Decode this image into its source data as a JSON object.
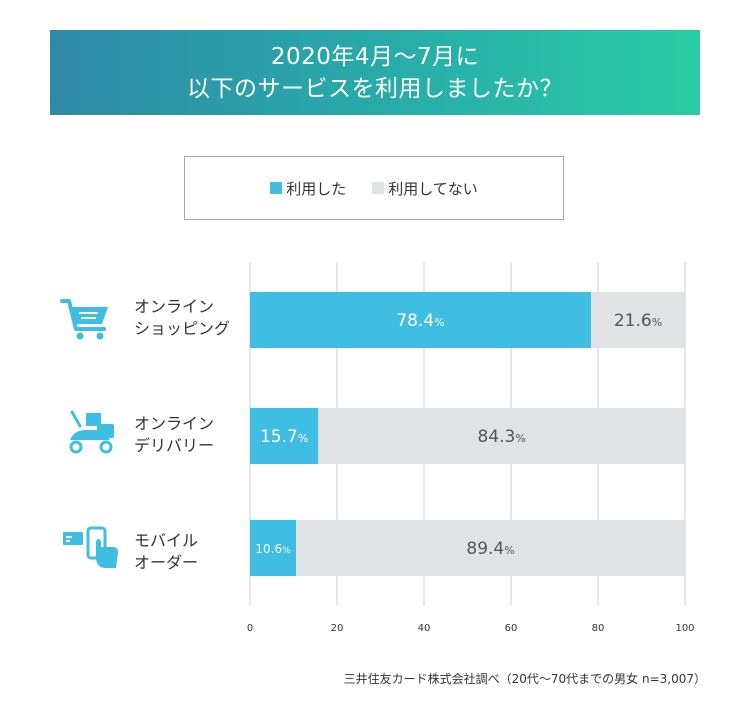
{
  "title": {
    "line1": "2020年4月〜7月に",
    "line2": "以下のサービスを利用しましたか？"
  },
  "legend": [
    {
      "label": "利用した",
      "color": "#3fbde3"
    },
    {
      "label": "利用してない",
      "color": "#e1e2e5"
    }
  ],
  "categories": [
    {
      "line1": "オンライン",
      "line2": "ショッピング",
      "icon": "shopping-cart-icon"
    },
    {
      "line1": "オンライン",
      "line2": "デリバリー",
      "icon": "delivery-scooter-icon"
    },
    {
      "line1": "モバイル",
      "line2": "オーダー",
      "icon": "mobile-order-icon"
    }
  ],
  "footnote": "三井住友カード株式会社調べ（20代〜70代までの男女 n=3,007）",
  "chart_data": {
    "type": "bar",
    "orientation": "horizontal",
    "stacked": true,
    "categories": [
      "オンラインショッピング",
      "オンラインデリバリー",
      "モバイルオーダー"
    ],
    "series": [
      {
        "name": "利用した",
        "values": [
          78.4,
          15.7,
          10.6
        ],
        "labels": [
          "78.4",
          "15.7",
          "10.6"
        ],
        "color": "#3fbde3"
      },
      {
        "name": "利用してない",
        "values": [
          21.6,
          84.3,
          89.4
        ],
        "labels": [
          "21.6",
          "84.3",
          "89.4"
        ],
        "color": "#e1e2e5"
      }
    ],
    "unit": "%",
    "xlim": [
      0,
      100
    ],
    "xticks": [
      "0",
      "20",
      "40",
      "60",
      "80",
      "100"
    ],
    "grid": true,
    "legend_position": "top"
  }
}
